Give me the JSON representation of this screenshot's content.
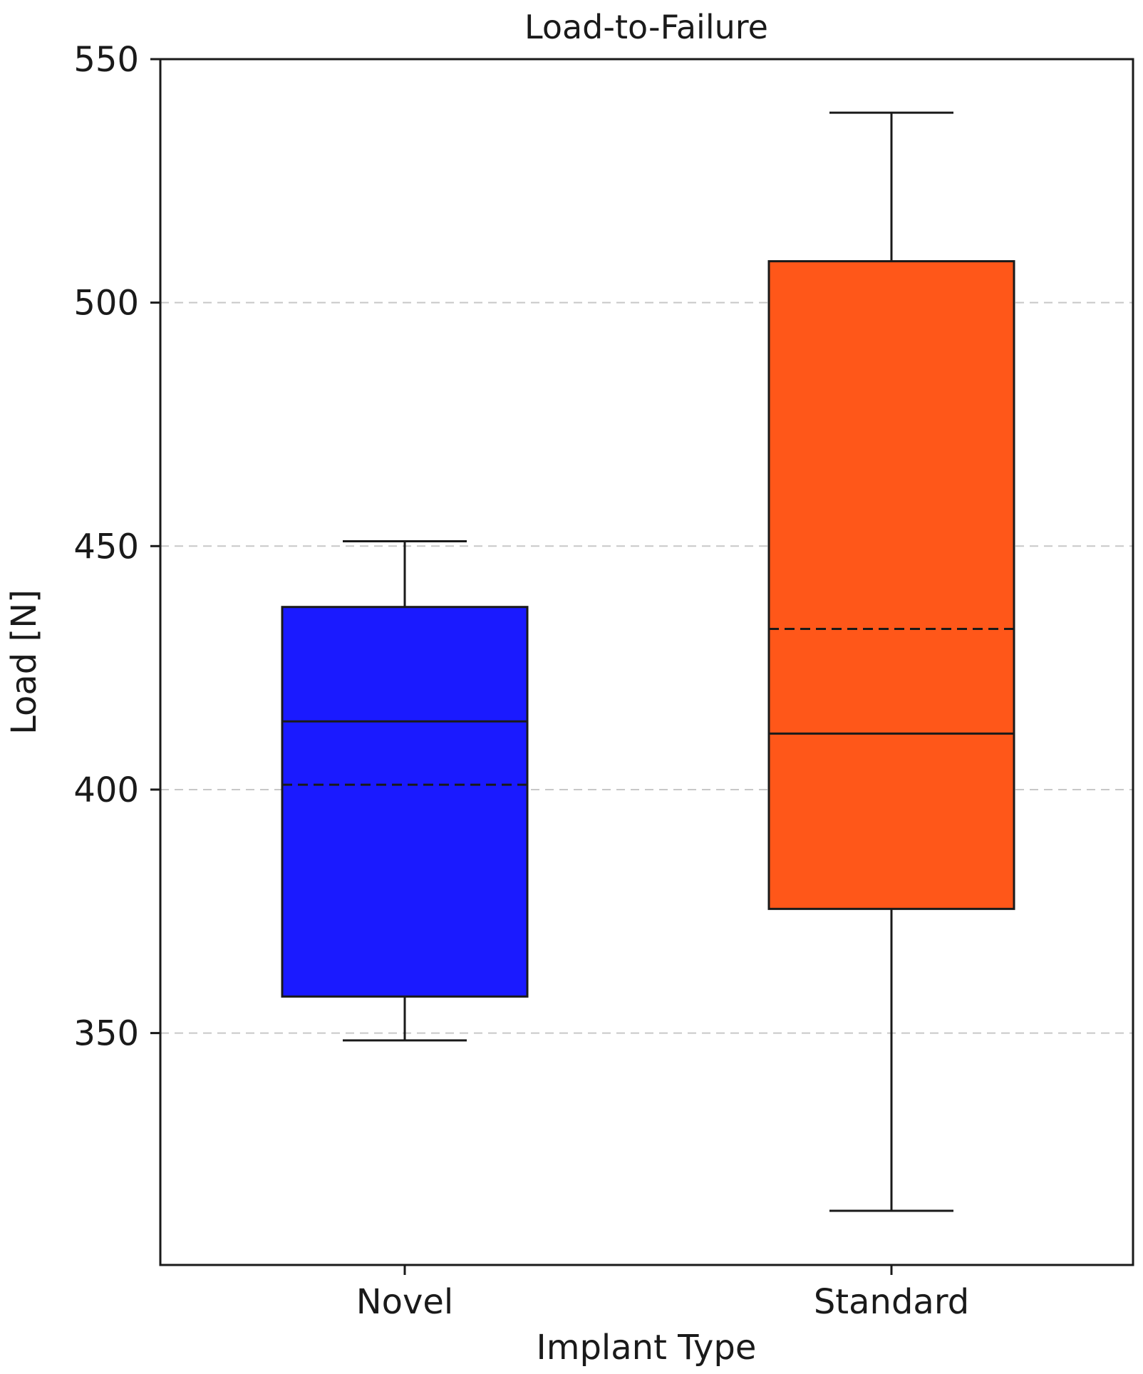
{
  "chart_data": {
    "type": "box",
    "title": "Load-to-Failure",
    "xlabel": "Implant Type",
    "ylabel": "Load [N]",
    "ylim": [
      305,
      550
    ],
    "yticks": [
      350,
      400,
      450,
      500,
      550
    ],
    "grid": "horizontal-dashed",
    "categories": [
      "Novel",
      "Standard"
    ],
    "series": [
      {
        "category": "Novel",
        "color": "#1a1aff",
        "whisker_low": 348.5,
        "q1": 357.5,
        "median": 414,
        "mean": 401,
        "q3": 437.5,
        "whisker_high": 451
      },
      {
        "category": "Standard",
        "color": "#ff5719",
        "whisker_low": 313.5,
        "q1": 375.5,
        "median": 411.5,
        "mean": 433,
        "q3": 508.5,
        "whisker_high": 539
      }
    ]
  }
}
